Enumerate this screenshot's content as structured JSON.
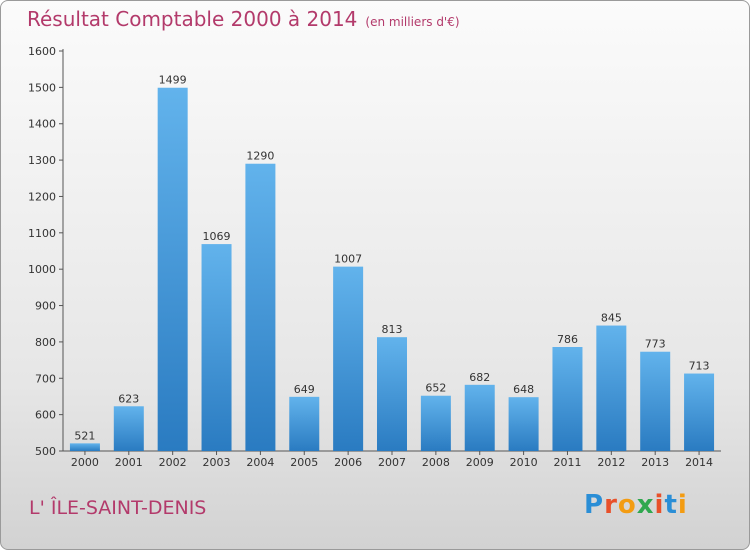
{
  "header": {
    "title": "Résultat Comptable 2000 à 2014",
    "unit": "(en milliers d'€)"
  },
  "place_name": "L' ÎLE-SAINT-DENIS",
  "logo": {
    "text": "Proxiti",
    "letter_colors": [
      "#2a8ed6",
      "#e8502a",
      "#f39c12",
      "#2fa84f",
      "#e8502a",
      "#2a8ed6",
      "#f39c12"
    ]
  },
  "colors": {
    "bar_top": "#62b3ec",
    "bar_bottom": "#2a7bc1",
    "title": "#b33a6b"
  },
  "chart_data": {
    "type": "bar",
    "title": "Résultat Comptable 2000 à 2014",
    "subtitle": "(en milliers d'€)",
    "xlabel": "",
    "ylabel": "",
    "categories": [
      "2000",
      "2001",
      "2002",
      "2003",
      "2004",
      "2005",
      "2006",
      "2007",
      "2008",
      "2009",
      "2010",
      "2011",
      "2012",
      "2013",
      "2014"
    ],
    "values": [
      521,
      623,
      1499,
      1069,
      1290,
      649,
      1007,
      813,
      652,
      682,
      648,
      786,
      845,
      773,
      713
    ],
    "ylim": [
      500,
      1600
    ],
    "yticks": [
      500,
      600,
      700,
      800,
      900,
      1000,
      1100,
      1200,
      1300,
      1400,
      1500,
      1600
    ],
    "grid": false,
    "legend": "none"
  }
}
